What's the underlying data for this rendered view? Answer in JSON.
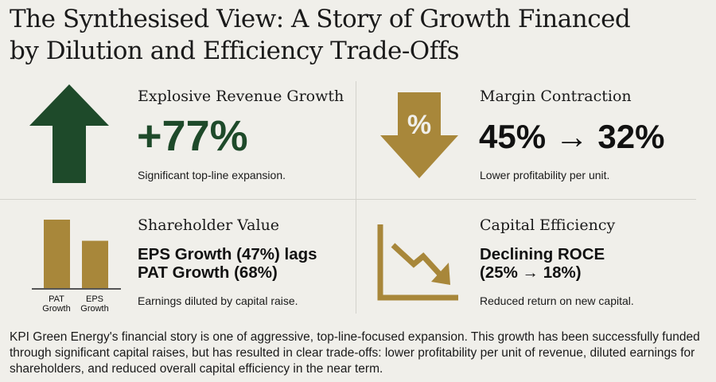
{
  "title": {
    "line1": "The Synthesised View: A Story of Growth Financed",
    "line2": "by Dilution and Efficiency Trade-Offs"
  },
  "colors": {
    "green": "#1e4a2a",
    "gold": "#a8873a",
    "background": "#f0efea"
  },
  "cards": {
    "revenue": {
      "icon": "arrow-up-icon",
      "heading": "Explosive Revenue Growth",
      "value": "+77%",
      "note": "Significant top-line expansion."
    },
    "margin": {
      "icon": "percent-down-arrow-icon",
      "icon_text": "%",
      "heading": "Margin Contraction",
      "value": "45% → 32%",
      "note": "Lower profitability per unit."
    },
    "shareholder": {
      "icon": "bar-chart-icon",
      "heading": "Shareholder Value",
      "value_line1": "EPS Growth (47%) lags",
      "value_line2": "PAT Growth (68%)",
      "note": "Earnings diluted by capital raise.",
      "chart_data": {
        "type": "bar",
        "categories": [
          "PAT Growth",
          "EPS Growth"
        ],
        "values": [
          68,
          47
        ],
        "labels": [
          [
            "PAT",
            "Growth"
          ],
          [
            "EPS",
            "Growth"
          ]
        ]
      }
    },
    "capital": {
      "icon": "declining-chart-icon",
      "heading": "Capital Efficiency",
      "value_line1": "Declining ROCE",
      "value_line2": "(25% → 18%)",
      "note": "Reduced return on new capital."
    }
  },
  "summary": "KPI Green Energy's financial story is one of aggressive, top-line-focused expansion. This growth has been successfully funded through significant capital raises, but has resulted in clear trade-offs: lower profitability per unit of revenue, diluted earnings for shareholders, and reduced overall capital efficiency in the near term."
}
